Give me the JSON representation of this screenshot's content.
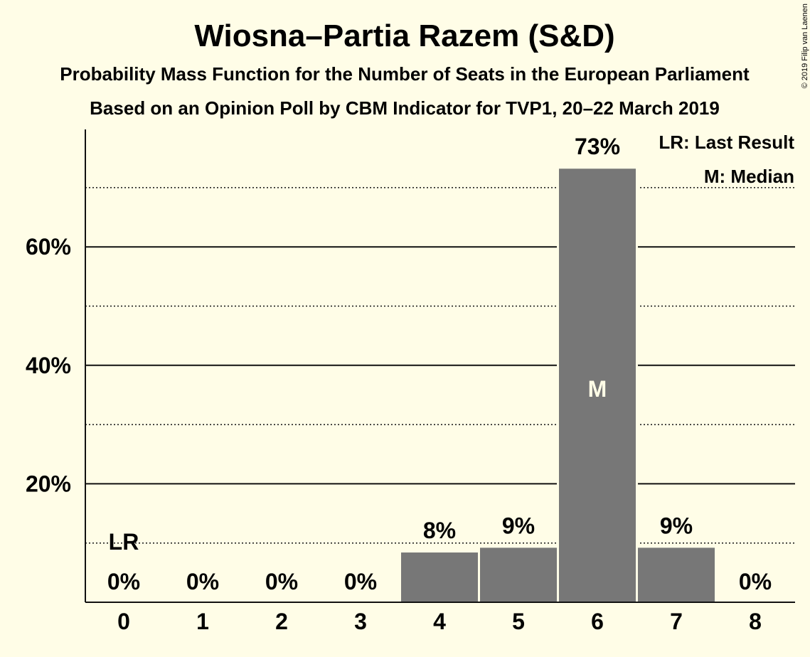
{
  "chart_data": {
    "type": "bar",
    "title": "Wiosna–Partia Razem (S&D)",
    "subtitle": "Probability Mass Function for the Number of Seats in the European Parliament",
    "subtitle2": "Based on an Opinion Poll by CBM Indicator for TVP1, 20–22 March 2019",
    "categories": [
      "0",
      "1",
      "2",
      "3",
      "4",
      "5",
      "6",
      "7",
      "8"
    ],
    "values": [
      0,
      0,
      0,
      0,
      8.4,
      9.2,
      73.2,
      9.2,
      0
    ],
    "value_labels": [
      "0%",
      "0%",
      "0%",
      "0%",
      "8%",
      "9%",
      "73%",
      "9%",
      "0%"
    ],
    "ylim": [
      0,
      80
    ],
    "y_ticks": [
      20,
      40,
      60
    ],
    "y_tick_labels": [
      "20%",
      "40%",
      "60%"
    ],
    "y_minor_gridlines": [
      10,
      30,
      50,
      70
    ],
    "last_result_category": "0",
    "last_result_marker": "LR",
    "median_category": "6",
    "median_marker": "M",
    "legend": [
      "LR: Last Result",
      "M: Median"
    ],
    "legend_position": "top-right",
    "bar_color": "#777777",
    "background_color": "#FFFDE7",
    "copyright": "© 2019 Filip van Laenen"
  }
}
